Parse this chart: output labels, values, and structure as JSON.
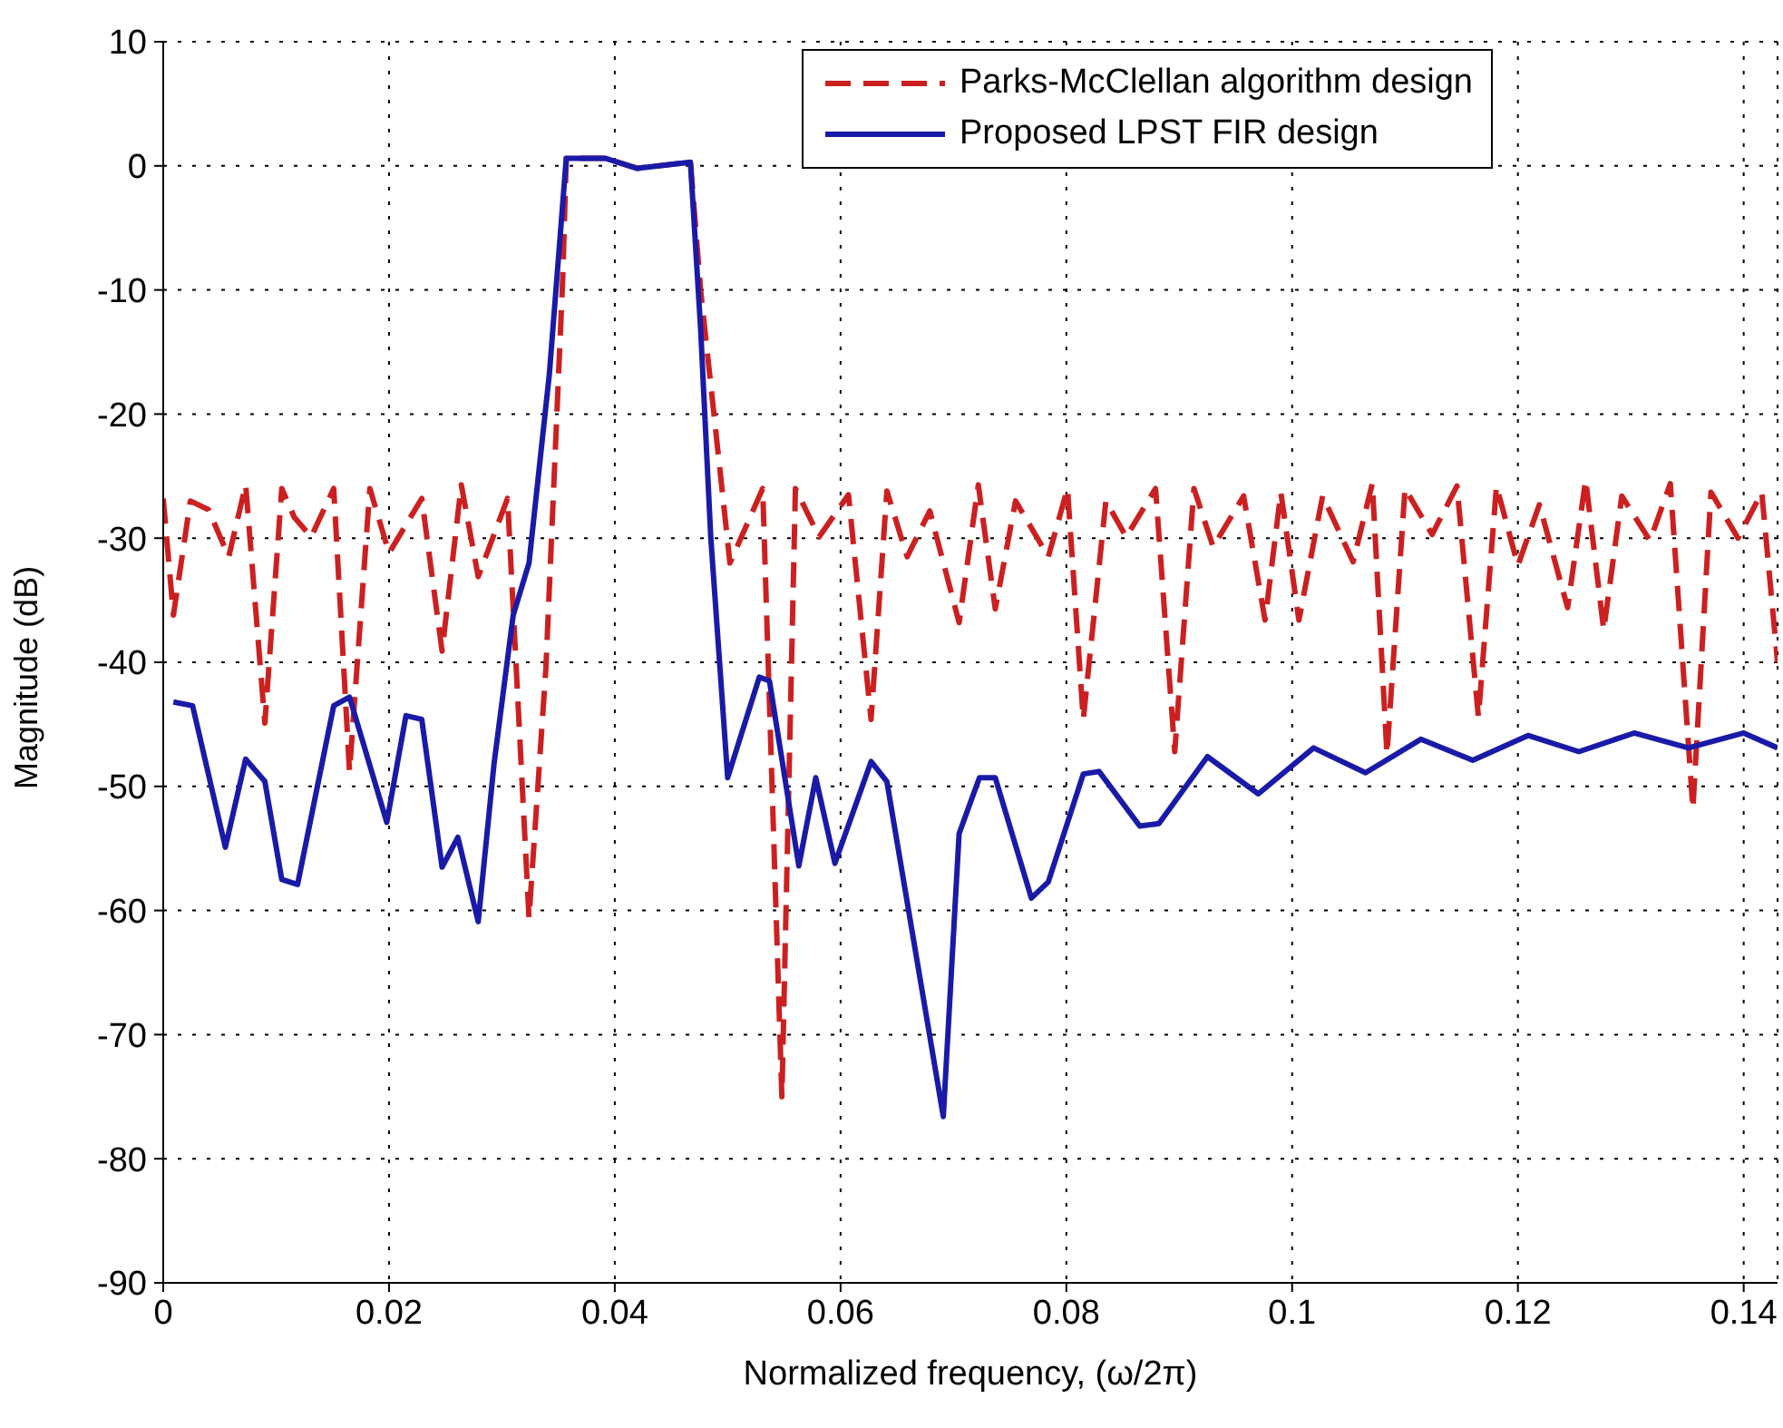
{
  "chart_data": {
    "type": "line",
    "xlabel": "Normalized frequency, (ω/2π)",
    "ylabel": "Magnitude (dB)",
    "xlim": [
      0,
      0.143
    ],
    "xticks": [
      0,
      0.02,
      0.04,
      0.06,
      0.08,
      0.1,
      0.12,
      0.14
    ],
    "ylim": [
      -90,
      10
    ],
    "yticks": [
      -90,
      -80,
      -70,
      -60,
      -50,
      -40,
      -30,
      -20,
      -10,
      0,
      10
    ],
    "grid": true,
    "legend": "top right",
    "marker": "none",
    "series": [
      {
        "name": "Parks-McClellan algorithm design",
        "color": "#cc2020",
        "line_style": "dashed",
        "x": [
          0,
          0.0009,
          0.0024,
          0.004,
          0.0058,
          0.0073,
          0.009,
          0.0105,
          0.0116,
          0.0131,
          0.0151,
          0.0165,
          0.0183,
          0.02,
          0.0229,
          0.0247,
          0.0264,
          0.0279,
          0.0305,
          0.0324,
          0.0339,
          0.0354,
          0.0357,
          0.0392,
          0.042,
          0.0467,
          0.0476,
          0.0502,
          0.0531,
          0.0548,
          0.056,
          0.0581,
          0.0607,
          0.0627,
          0.0641,
          0.0659,
          0.0679,
          0.0705,
          0.0722,
          0.0737,
          0.0755,
          0.0784,
          0.0801,
          0.0815,
          0.0835,
          0.0853,
          0.0879,
          0.0896,
          0.0913,
          0.093,
          0.0957,
          0.0976,
          0.099,
          0.1006,
          0.1027,
          0.1054,
          0.1071,
          0.1084,
          0.11,
          0.1124,
          0.1146,
          0.1165,
          0.1181,
          0.12,
          0.1219,
          0.1244,
          0.126,
          0.1276,
          0.1292,
          0.1317,
          0.1335,
          0.1355,
          0.1371,
          0.1395,
          0.1416,
          0.143
        ],
        "values": [
          -26.8,
          -36.2,
          -27,
          -27.7,
          -31.5,
          -25.7,
          -44.9,
          -26,
          -28.3,
          -29.9,
          -26,
          -48.8,
          -26,
          -31.2,
          -26.8,
          -39.1,
          -25.7,
          -33.1,
          -26.8,
          -60.6,
          -40.4,
          -8.8,
          0.6,
          0.6,
          -0.2,
          0.3,
          -10,
          -32,
          -26,
          -75,
          -26,
          -29.9,
          -26.5,
          -44.6,
          -26.2,
          -31.5,
          -27.8,
          -36.8,
          -25.7,
          -35.7,
          -27,
          -31.5,
          -26,
          -44.6,
          -27,
          -29.9,
          -26,
          -47.2,
          -26,
          -30.7,
          -26.6,
          -36.6,
          -26.3,
          -36.6,
          -26.6,
          -31.9,
          -25.6,
          -47.4,
          -26,
          -29.7,
          -25.8,
          -44.4,
          -25.8,
          -32.2,
          -27.3,
          -35.6,
          -25.3,
          -37.4,
          -26.6,
          -30.2,
          -25.6,
          -51.8,
          -26.3,
          -30,
          -26.3,
          -40
        ]
      },
      {
        "name": "Proposed LPST FIR design",
        "color": "#1a1aa8",
        "line_style": "solid",
        "x": [
          0.0009,
          0.0026,
          0.0055,
          0.0073,
          0.009,
          0.0105,
          0.0119,
          0.0151,
          0.0165,
          0.0198,
          0.0215,
          0.0229,
          0.0247,
          0.0261,
          0.0279,
          0.0293,
          0.031,
          0.0324,
          0.0342,
          0.0357,
          0.0392,
          0.042,
          0.0467,
          0.0476,
          0.0485,
          0.05,
          0.0528,
          0.0537,
          0.0563,
          0.0578,
          0.0595,
          0.0627,
          0.0641,
          0.0691,
          0.0705,
          0.0723,
          0.0737,
          0.0769,
          0.0784,
          0.0815,
          0.0829,
          0.0865,
          0.0882,
          0.0925,
          0.097,
          0.1019,
          0.1065,
          0.1114,
          0.116,
          0.1209,
          0.1254,
          0.1303,
          0.1351,
          0.14,
          0.143
        ],
        "values": [
          -43.2,
          -43.5,
          -54.9,
          -47.8,
          -49.6,
          -57.5,
          -57.9,
          -43.5,
          -42.8,
          -52.9,
          -44.3,
          -44.6,
          -56.5,
          -54.1,
          -60.9,
          -48.2,
          -36.2,
          -32,
          -16.8,
          0.6,
          0.6,
          -0.2,
          0.3,
          -13.1,
          -29.9,
          -49.3,
          -41.2,
          -41.5,
          -56.4,
          -49.3,
          -56.2,
          -48,
          -49.6,
          -76.6,
          -53.8,
          -49.3,
          -49.3,
          -59,
          -57.7,
          -49,
          -48.8,
          -53.2,
          -53,
          -47.6,
          -50.6,
          -46.9,
          -48.9,
          -46.2,
          -47.9,
          -45.9,
          -47.2,
          -45.7,
          -46.9,
          -45.7,
          -46.9
        ]
      }
    ]
  }
}
